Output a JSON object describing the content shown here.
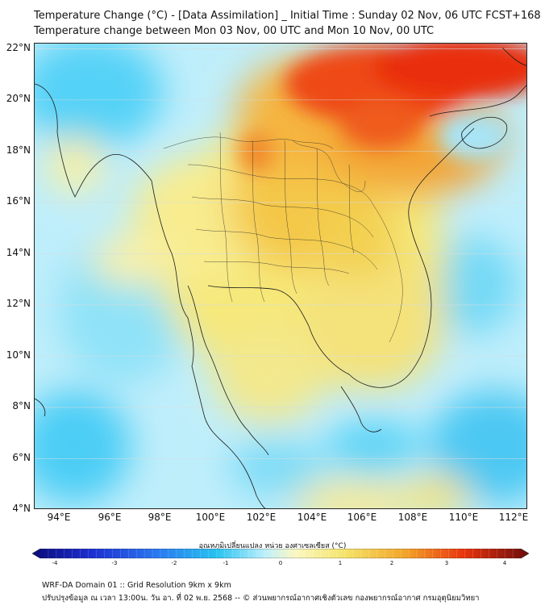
{
  "header": {
    "title_line1": "Temperature Change (°C) - [Data Assimilation] _ Initial Time : Sunday 02 Nov, 06 UTC FCST+168",
    "title_line2": "Temperature change between Mon 03 Nov, 00 UTC and Mon 10 Nov, 00 UTC"
  },
  "map": {
    "lat_labels": [
      "22°N",
      "20°N",
      "18°N",
      "16°N",
      "14°N",
      "12°N",
      "10°N",
      "8°N",
      "6°N",
      "4°N"
    ],
    "lon_labels": [
      "94°E",
      "96°E",
      "98°E",
      "100°E",
      "102°E",
      "104°E",
      "106°E",
      "108°E",
      "110°E",
      "112°E"
    ],
    "lat_range": [
      4,
      22.2
    ],
    "lon_range": [
      93,
      112.5
    ]
  },
  "colorbar": {
    "label": "อุณหภูมิเปลี่ยนแปลง หน่วย องศาเซลเซียส (°C)",
    "ticks": [
      "-4",
      "-3",
      "-2",
      "-1",
      "0",
      "1",
      "2",
      "3",
      "4"
    ],
    "range": [
      -4,
      4
    ]
  },
  "footer": {
    "line1": "WRF-DA Domain 01 :: Grid Resolution 9km x 9km",
    "line2": "ปรับปรุงข้อมูล ณ เวลา 13:00น. วัน อา. ที่ 02 พ.ย. 2568 -- © ส่วนพยากรณ์อากาศเชิงตัวเลข กองพยากรณ์อากาศ กรมอุตุนิยมวิทยา"
  }
}
